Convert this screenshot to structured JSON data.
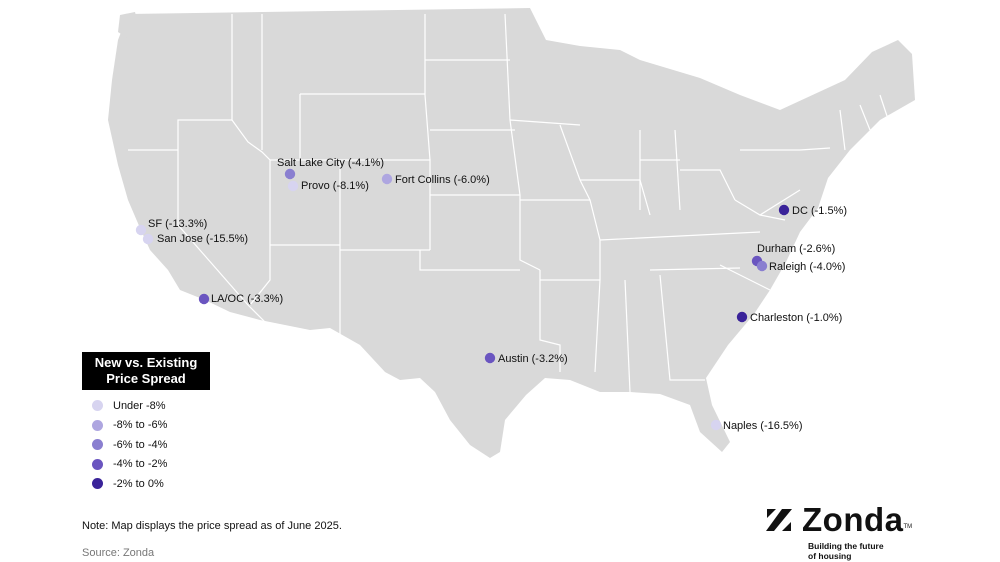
{
  "legend": {
    "title_line1": "New vs. Existing",
    "title_line2": "Price Spread",
    "items": [
      {
        "label": "Under -8%",
        "color": "#d7d4f0"
      },
      {
        "label": "-8% to -6%",
        "color": "#aea6e0"
      },
      {
        "label": "-6% to -4%",
        "color": "#8a7fd0"
      },
      {
        "label": "-4% to -2%",
        "color": "#6a55c0"
      },
      {
        "label": "-2% to 0%",
        "color": "#3a2399"
      }
    ]
  },
  "markers": [
    {
      "id": "sf",
      "label": "SF (-13.3%)",
      "value": -13.3,
      "bin": 0
    },
    {
      "id": "san-jose",
      "label": "San Jose (-15.5%)",
      "value": -15.5,
      "bin": 0
    },
    {
      "id": "la-oc",
      "label": "LA/OC (-3.3%)",
      "value": -3.3,
      "bin": 3
    },
    {
      "id": "salt-lake-city",
      "label": "Salt Lake City (-4.1%)",
      "value": -4.1,
      "bin": 2
    },
    {
      "id": "provo",
      "label": "Provo (-8.1%)",
      "value": -8.1,
      "bin": 0
    },
    {
      "id": "fort-collins",
      "label": "Fort Collins (-6.0%)",
      "value": -6.0,
      "bin": 1
    },
    {
      "id": "austin",
      "label": "Austin (-3.2%)",
      "value": -3.2,
      "bin": 3
    },
    {
      "id": "dc",
      "label": "DC (-1.5%)",
      "value": -1.5,
      "bin": 4
    },
    {
      "id": "durham",
      "label": "Durham (-2.6%)",
      "value": -2.6,
      "bin": 3
    },
    {
      "id": "raleigh",
      "label": "Raleigh (-4.0%)",
      "value": -4.0,
      "bin": 2
    },
    {
      "id": "charleston",
      "label": "Charleston (-1.0%)",
      "value": -1.0,
      "bin": 4
    },
    {
      "id": "naples",
      "label": "Naples (-16.5%)",
      "value": -16.5,
      "bin": 0
    }
  ],
  "note": "Note: Map displays the price spread as of June 2025.",
  "source": "Source: Zonda",
  "logo": {
    "name": "Zonda",
    "trademark": "TM",
    "tagline_line1": "Building the future",
    "tagline_line2": "of housing"
  },
  "colors": {
    "land": "#d9d9d9",
    "borders": "#ffffff",
    "background": "#ffffff"
  }
}
